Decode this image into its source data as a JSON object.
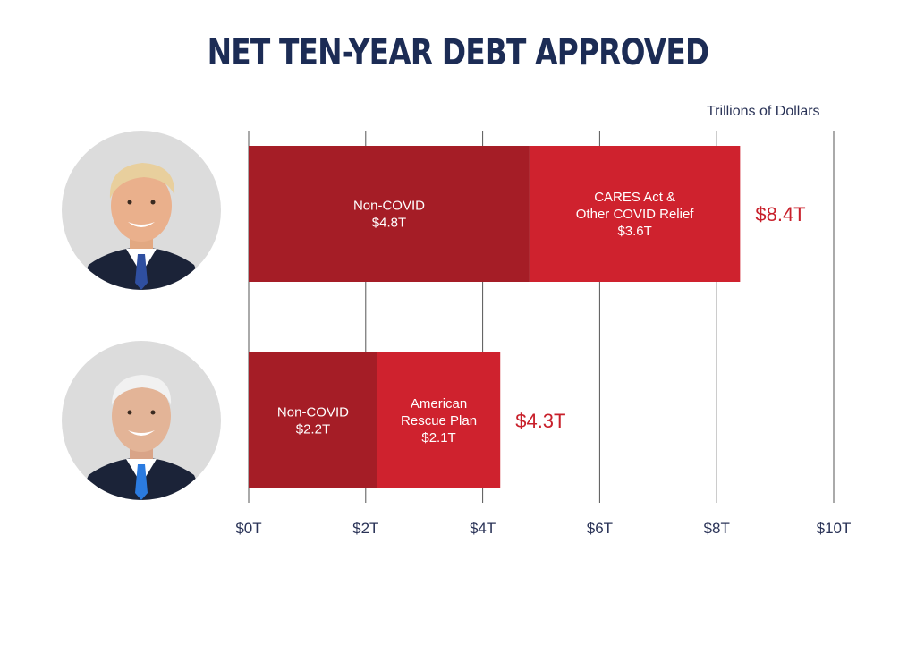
{
  "title": "NET TEN-YEAR DEBT APPROVED",
  "unit_label": "Trillions of Dollars",
  "colors": {
    "title": "#1c2c55",
    "bar_dark": "#a51d26",
    "bar_light": "#cf222e",
    "total": "#c8202b",
    "axis": "#2a3357",
    "grid": "#555555",
    "portrait_bg": "#d9d9d9"
  },
  "portraits": [
    {
      "name": "trump-portrait-icon"
    },
    {
      "name": "biden-portrait-icon"
    }
  ],
  "chart_data": {
    "type": "bar",
    "orientation": "horizontal",
    "stacked": true,
    "unit": "Trillions of Dollars",
    "xlim": [
      0,
      10
    ],
    "ticks": [
      0,
      2,
      4,
      6,
      8,
      10
    ],
    "tick_labels": [
      "$0T",
      "$2T",
      "$4T",
      "$6T",
      "$8T",
      "$10T"
    ],
    "grid": true,
    "rows": [
      {
        "total": 8.4,
        "total_label": "$8.4T",
        "segments": [
          {
            "value": 4.8,
            "label_lines": [
              "Non-COVID",
              "$4.8T"
            ],
            "color": "#a51d26"
          },
          {
            "value": 3.6,
            "label_lines": [
              "CARES Act &",
              "Other COVID Relief",
              "$3.6T"
            ],
            "color": "#cf222e"
          }
        ]
      },
      {
        "total": 4.3,
        "total_label": "$4.3T",
        "segments": [
          {
            "value": 2.2,
            "label_lines": [
              "Non-COVID",
              "$2.2T"
            ],
            "color": "#a51d26"
          },
          {
            "value": 2.1,
            "label_lines": [
              "American",
              "Rescue Plan",
              "$2.1T"
            ],
            "color": "#cf222e"
          }
        ]
      }
    ]
  }
}
